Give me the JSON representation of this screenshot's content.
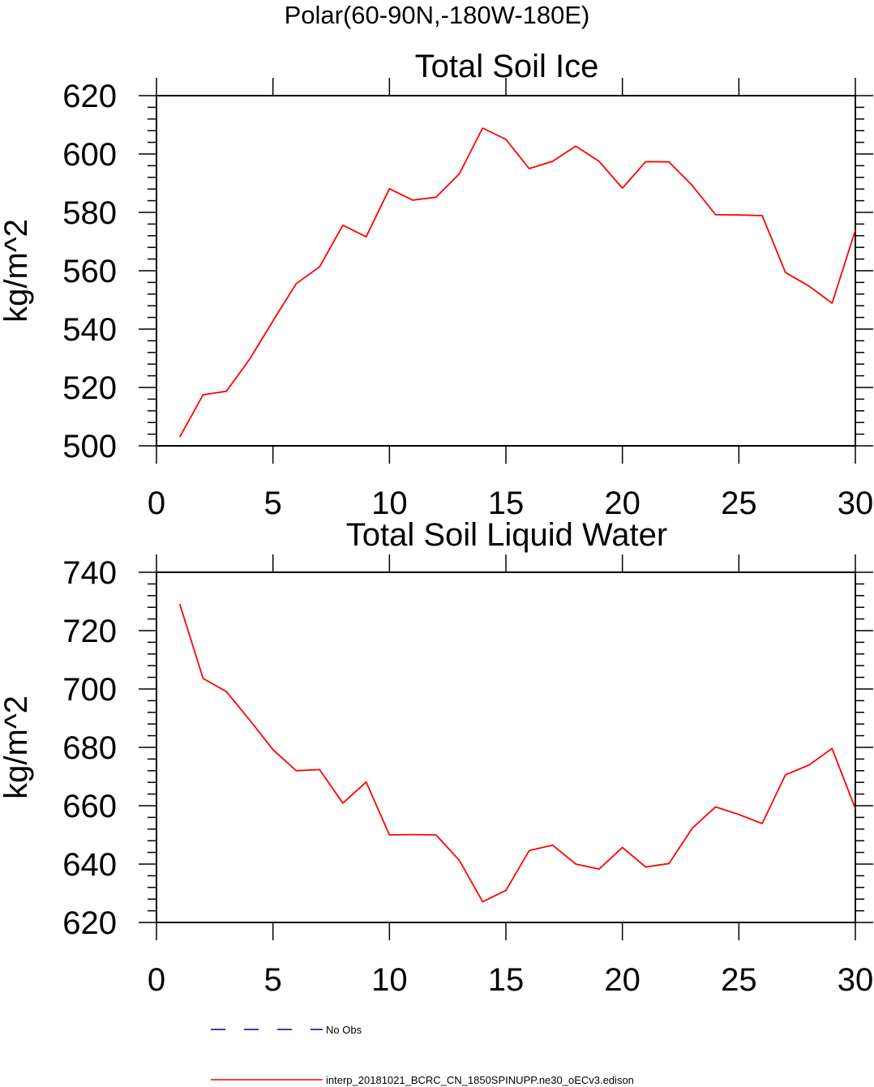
{
  "figure_title": "Polar(60-90N,-180W-180E)",
  "colors": {
    "model_line": "#ff0000",
    "obs_line": "#000080",
    "axis": "#000000"
  },
  "legend": [
    {
      "label": "No Obs",
      "style": "dashed",
      "color": "#000080"
    },
    {
      "label": "interp_20181021_BCRC_CN_1850SPINUPP.ne30_oECv3.edison",
      "style": "solid",
      "color": "#ff0000"
    }
  ],
  "chart_data": [
    {
      "type": "line",
      "title": "Total Soil Ice",
      "xlabel": "",
      "ylabel": "kg/m^2",
      "xlim": [
        0,
        30
      ],
      "ylim": [
        500,
        620
      ],
      "xticks": [
        0,
        5,
        10,
        15,
        20,
        25,
        30
      ],
      "yticks": [
        500,
        520,
        540,
        560,
        580,
        600,
        620
      ],
      "series": [
        {
          "name": "interp_20181021_BCRC_CN_1850SPINUPP.ne30_oECv3.edison",
          "x": [
            1,
            2,
            3,
            4,
            5,
            6,
            7,
            8,
            9,
            10,
            11,
            12,
            13,
            14,
            15,
            16,
            17,
            18,
            19,
            20,
            21,
            22,
            23,
            24,
            25,
            26,
            27,
            28,
            29,
            30
          ],
          "values": [
            503,
            517.5,
            518.7,
            529.7,
            542.8,
            555.6,
            561.3,
            575.6,
            571.6,
            588.1,
            584.2,
            585.2,
            593.2,
            608.9,
            605,
            595,
            597.5,
            602.7,
            597.5,
            588.3,
            597.4,
            597.3,
            589.2,
            579.2,
            579.1,
            578.9,
            559.4,
            554.8,
            548.9,
            573.9
          ]
        }
      ]
    },
    {
      "type": "line",
      "title": "Total Soil Liquid Water",
      "xlabel": "",
      "ylabel": "kg/m^2",
      "xlim": [
        0,
        30
      ],
      "ylim": [
        620,
        740
      ],
      "xticks": [
        0,
        5,
        10,
        15,
        20,
        25,
        30
      ],
      "yticks": [
        620,
        640,
        660,
        680,
        700,
        720,
        740
      ],
      "series": [
        {
          "name": "interp_20181021_BCRC_CN_1850SPINUPP.ne30_oECv3.edison",
          "x": [
            1,
            2,
            3,
            4,
            5,
            6,
            7,
            8,
            9,
            10,
            11,
            12,
            13,
            14,
            15,
            16,
            17,
            18,
            19,
            20,
            21,
            22,
            23,
            24,
            25,
            26,
            27,
            28,
            29,
            30
          ],
          "values": [
            729.1,
            703.6,
            699.1,
            689.4,
            679.2,
            672,
            672.4,
            660.9,
            668.1,
            650,
            650.1,
            650,
            641.3,
            627.1,
            631,
            644.6,
            646.5,
            640,
            638.3,
            645.7,
            639,
            640.2,
            652.3,
            659.6,
            657,
            653.9,
            670.6,
            673.9,
            679.6,
            659
          ]
        }
      ]
    }
  ]
}
